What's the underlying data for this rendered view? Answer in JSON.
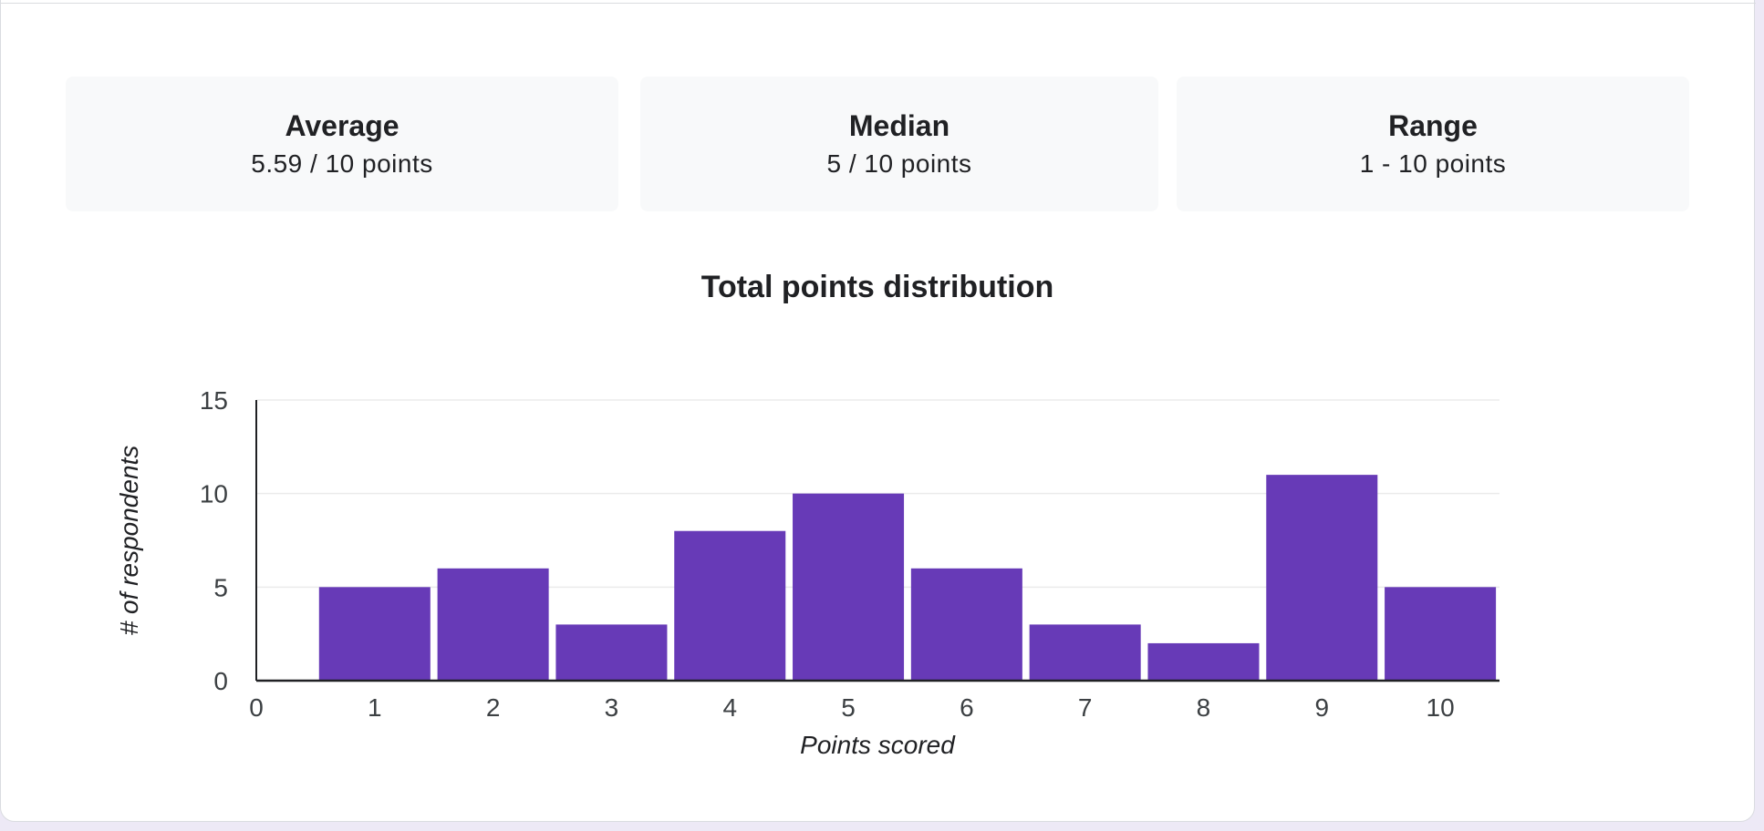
{
  "stats": {
    "average": {
      "title": "Average",
      "value": "5.59 / 10 points"
    },
    "median": {
      "title": "Median",
      "value": "5 / 10 points"
    },
    "range": {
      "title": "Range",
      "value": "1 - 10 points"
    }
  },
  "colors": {
    "bar": "#673ab7",
    "grid": "#ebebeb",
    "axis": "#202124"
  },
  "chart_data": {
    "type": "bar",
    "title": "Total points distribution",
    "xlabel": "Points scored",
    "ylabel": "# of respondents",
    "x_ticks": [
      "0",
      "1",
      "2",
      "3",
      "4",
      "5",
      "6",
      "7",
      "8",
      "9",
      "10"
    ],
    "y_ticks": [
      "0",
      "5",
      "10",
      "15"
    ],
    "categories": [
      1,
      2,
      3,
      4,
      5,
      6,
      7,
      8,
      9,
      10
    ],
    "values": [
      5,
      6,
      3,
      8,
      10,
      6,
      3,
      2,
      11,
      5
    ],
    "xlim": [
      0,
      10.5
    ],
    "ylim": [
      0,
      15
    ],
    "grid": true,
    "legend": "none"
  }
}
